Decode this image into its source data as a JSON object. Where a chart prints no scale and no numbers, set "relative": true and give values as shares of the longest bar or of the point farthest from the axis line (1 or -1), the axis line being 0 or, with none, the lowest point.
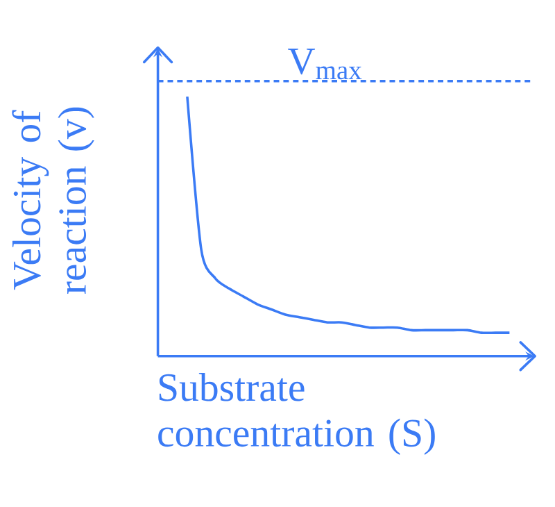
{
  "chart_data": {
    "type": "line",
    "relative": true,
    "xlabel": "Substrate concentration (S)",
    "ylabel": "Velocity of reaction (v)",
    "categories": [
      null,
      null,
      null,
      null,
      null,
      null,
      null,
      null,
      null,
      null,
      null,
      null,
      null,
      null,
      null,
      null,
      null,
      null,
      null,
      null,
      null,
      null,
      null,
      null
    ],
    "series": [
      {
        "color": "#3b7bf5",
        "values": [
          1,
          0.41,
          0.3,
          0.26,
          0.23,
          0.2,
          0.18,
          0.16,
          0.15,
          0.14,
          0.13,
          0.13,
          0.12,
          0.11,
          0.11,
          0.11,
          0.1,
          0.1,
          0.1,
          0.1,
          0.1,
          0.09,
          0.09,
          0.09
        ]
      }
    ],
    "ref_lines": [
      {
        "axis": "y",
        "value": 1.06,
        "label": "V$_{max}$",
        "line_style": "dotted",
        "color": "#3b7bf5"
      }
    ],
    "marker": "none"
  }
}
